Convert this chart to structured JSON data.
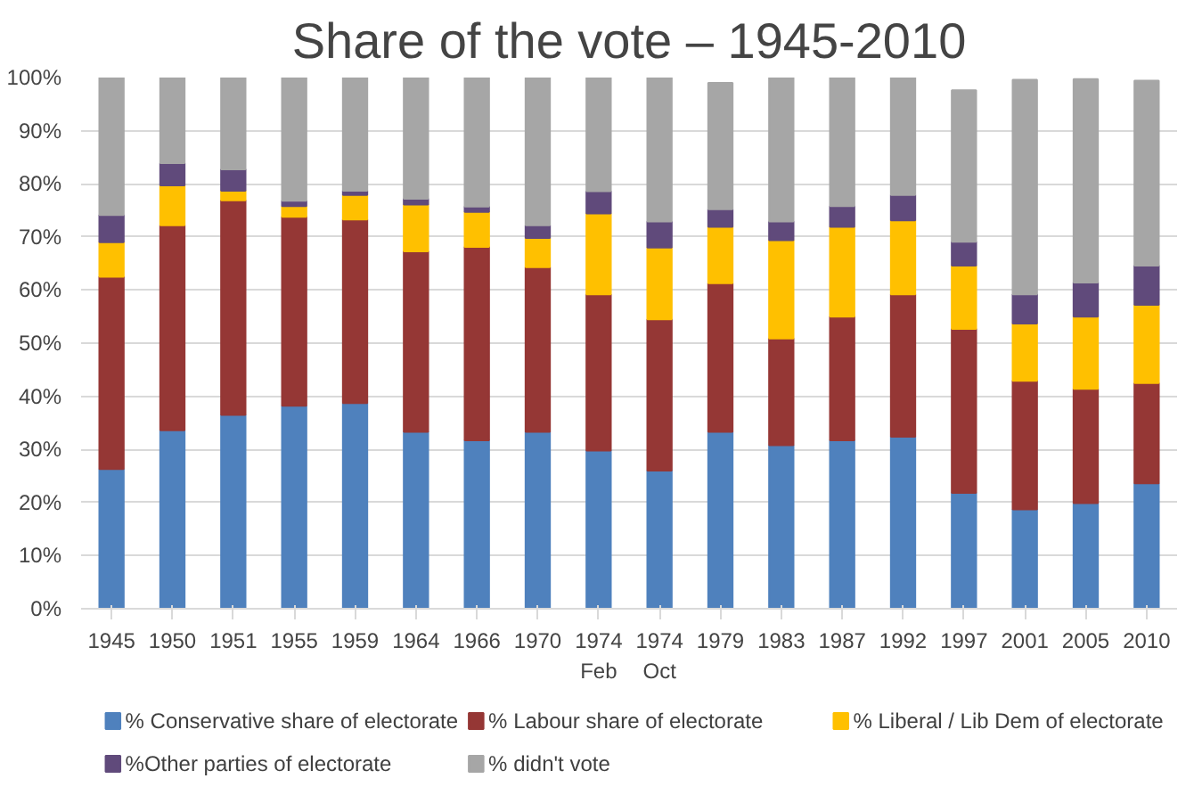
{
  "chart_data": {
    "type": "bar",
    "stacked": true,
    "title": "Share of the vote – 1945-2010",
    "categories": [
      "1945",
      "1950",
      "1951",
      "1955",
      "1959",
      "1964",
      "1966",
      "1970",
      "1974 Feb",
      "1974 Oct",
      "1979",
      "1983",
      "1987",
      "1992",
      "1997",
      "2001",
      "2005",
      "2010"
    ],
    "series": [
      {
        "name": "% Conservative share of electorate",
        "color": "#4f81bd",
        "values": [
          26.3,
          33.6,
          36.5,
          38.2,
          38.7,
          33.3,
          31.7,
          33.3,
          29.8,
          26.0,
          33.3,
          30.8,
          31.7,
          32.4,
          21.8,
          18.7,
          19.9,
          23.6
        ]
      },
      {
        "name": "% Labour share of electorate",
        "color": "#953735",
        "values": [
          36.2,
          38.6,
          40.4,
          35.6,
          34.6,
          34.0,
          36.4,
          31.0,
          29.4,
          28.5,
          28.0,
          20.1,
          23.3,
          26.8,
          30.9,
          24.2,
          21.5,
          18.9
        ]
      },
      {
        "name": "% Liberal / Lib Dem of electorate",
        "color": "#ffc000",
        "values": [
          6.5,
          7.5,
          1.8,
          2.0,
          4.6,
          8.8,
          6.6,
          5.5,
          15.2,
          13.5,
          10.6,
          18.5,
          16.9,
          13.9,
          11.9,
          10.8,
          13.6,
          14.7
        ]
      },
      {
        "name": "%Other parties of electorate",
        "color": "#604a7b",
        "values": [
          5.1,
          4.2,
          4.0,
          1.0,
          0.8,
          1.1,
          1.0,
          2.4,
          4.2,
          4.9,
          3.3,
          3.5,
          3.9,
          4.8,
          4.5,
          5.5,
          6.4,
          7.4
        ]
      },
      {
        "name": "% didn't vote",
        "color": "#a6a6a6",
        "values": [
          25.9,
          16.1,
          17.3,
          23.2,
          21.3,
          22.8,
          24.3,
          27.8,
          21.4,
          27.1,
          23.8,
          27.1,
          24.2,
          22.1,
          28.5,
          40.4,
          38.3,
          34.8
        ]
      }
    ],
    "ylim": [
      0,
      100
    ],
    "yticks": [
      {
        "value": 0,
        "label": "0%"
      },
      {
        "value": 10,
        "label": "10%"
      },
      {
        "value": 20,
        "label": "20%"
      },
      {
        "value": 30,
        "label": "30%"
      },
      {
        "value": 40,
        "label": "40%"
      },
      {
        "value": 50,
        "label": "50%"
      },
      {
        "value": 60,
        "label": "60%"
      },
      {
        "value": 70,
        "label": "70%"
      },
      {
        "value": 80,
        "label": "80%"
      },
      {
        "value": 90,
        "label": "90%"
      },
      {
        "value": 100,
        "label": "100%"
      }
    ],
    "grid": "y",
    "legend": "bottom"
  }
}
